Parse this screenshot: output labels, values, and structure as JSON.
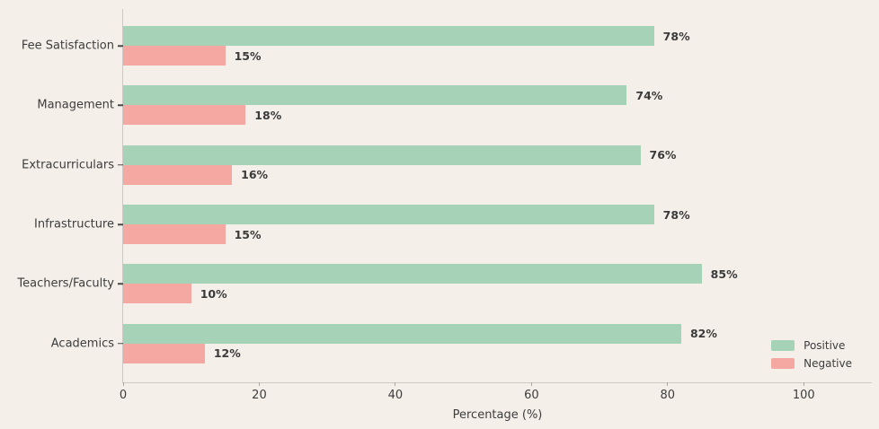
{
  "colors": {
    "background": "#f4efe9",
    "spine": "#ccc9c4",
    "positive": "#a6d2b7",
    "negative": "#f5a8a2",
    "text": "#3d3d3d",
    "value_label": "#3a3a3a"
  },
  "chart_data": {
    "type": "bar",
    "orientation": "horizontal",
    "title": "",
    "xlabel": "Percentage (%)",
    "ylabel": "",
    "categories": [
      "Fee Satisfaction",
      "Management",
      "Extracurriculars",
      "Infrastructure",
      "Teachers/Faculty",
      "Academics"
    ],
    "series": [
      {
        "name": "Positive",
        "color": "#a6d2b7",
        "values": [
          78,
          74,
          76,
          78,
          85,
          82
        ]
      },
      {
        "name": "Negative",
        "color": "#f5a8a2",
        "values": [
          15,
          18,
          16,
          15,
          10,
          12
        ]
      }
    ],
    "value_label_suffix": "%",
    "x_ticks": [
      0,
      20,
      40,
      60,
      80,
      100
    ],
    "xlim": [
      0,
      110
    ],
    "grid": false,
    "legend_position": "lower right"
  }
}
